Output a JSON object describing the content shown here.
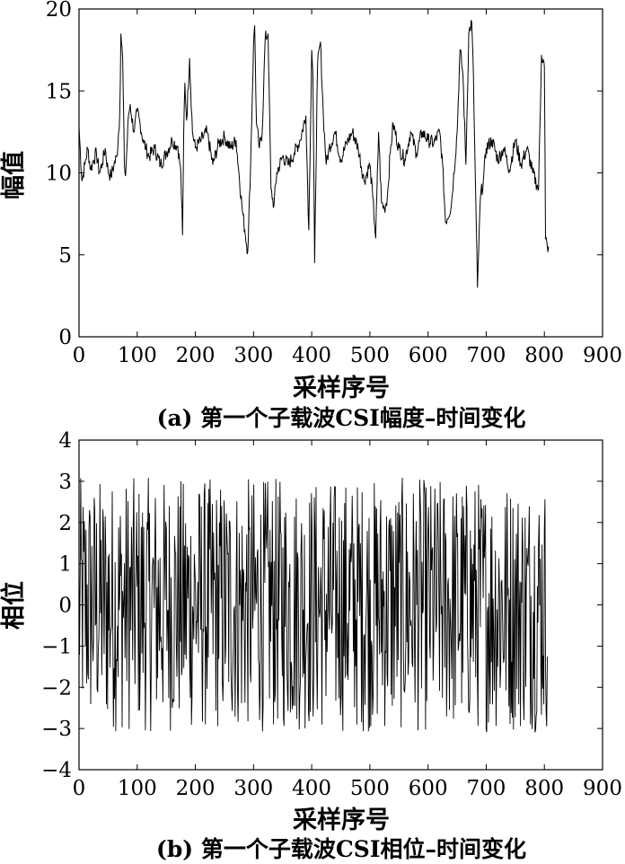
{
  "chart_data": [
    {
      "type": "line",
      "caption": "(a) 第一个子载波CSI幅度–时间变化",
      "xlabel": "采样序号",
      "ylabel": "幅值",
      "xlim": [
        0,
        900
      ],
      "ylim": [
        0,
        20
      ],
      "xticks": [
        "0",
        "100",
        "200",
        "300",
        "400",
        "500",
        "600",
        "700",
        "800",
        "900"
      ],
      "yticks": [
        "0",
        "5",
        "10",
        "15",
        "20"
      ],
      "grid": false,
      "series": [
        {
          "x": [
            0,
            5,
            10,
            15,
            20,
            25,
            30,
            35,
            40,
            45,
            50,
            55,
            60,
            65,
            70,
            72,
            75,
            78,
            80,
            85,
            88,
            90,
            95,
            100,
            105,
            110,
            115,
            120,
            130,
            140,
            150,
            160,
            170,
            175,
            178,
            180,
            182,
            185,
            190,
            195,
            200,
            210,
            220,
            230,
            240,
            250,
            260,
            270,
            280,
            285,
            290,
            295,
            300,
            302,
            305,
            310,
            315,
            320,
            325,
            330,
            335,
            340,
            350,
            360,
            370,
            380,
            390,
            395,
            400,
            402,
            405,
            410,
            415,
            420,
            425,
            430,
            440,
            450,
            460,
            470,
            480,
            490,
            500,
            505,
            510,
            515,
            520,
            525,
            530,
            535,
            540,
            550,
            560,
            570,
            580,
            590,
            600,
            610,
            620,
            625,
            630,
            640,
            650,
            655,
            660,
            665,
            670,
            675,
            678,
            680,
            685,
            690,
            695,
            700,
            710,
            720,
            730,
            740,
            750,
            760,
            770,
            780,
            790,
            795,
            800,
            802,
            805,
            807
          ],
          "values": [
            12.8,
            9.5,
            10.5,
            11.5,
            10.2,
            10.8,
            11.2,
            10.0,
            10.6,
            11.5,
            10.1,
            9.8,
            10.5,
            11.0,
            13.5,
            18.5,
            17.0,
            10.5,
            9.8,
            13.5,
            14.2,
            13.5,
            12.5,
            13.8,
            13.0,
            12.0,
            11.5,
            11.0,
            11.5,
            10.5,
            11.2,
            12.0,
            11.6,
            10.0,
            6.2,
            12.5,
            15.5,
            13.2,
            17.0,
            12.5,
            11.5,
            12.0,
            12.5,
            10.5,
            11.8,
            12.2,
            11.5,
            12.0,
            8.0,
            6.5,
            5.2,
            10.5,
            17.8,
            19.0,
            13.0,
            11.5,
            12.5,
            18.2,
            18.5,
            9.0,
            8.0,
            10.0,
            11.0,
            10.5,
            11.2,
            12.0,
            13.5,
            6.5,
            17.5,
            16.0,
            4.5,
            16.5,
            18.0,
            13.5,
            10.5,
            11.5,
            12.5,
            10.8,
            11.8,
            12.5,
            11.5,
            9.5,
            10.5,
            8.5,
            6.0,
            12.5,
            8.2,
            7.8,
            8.5,
            11.2,
            13.0,
            11.5,
            10.8,
            12.5,
            11.2,
            12.5,
            12.0,
            11.8,
            12.5,
            10.5,
            7.0,
            8.0,
            12.5,
            17.5,
            16.0,
            10.5,
            18.5,
            19.2,
            16.0,
            12.0,
            3.0,
            8.5,
            9.5,
            11.5,
            12.0,
            10.8,
            11.5,
            10.2,
            12.0,
            10.5,
            11.5,
            10.0,
            9.0,
            17.2,
            16.5,
            6.0,
            5.5,
            5.5
          ]
        }
      ]
    },
    {
      "type": "line",
      "caption": "(b) 第一个子载波CSI相位–时间变化",
      "xlabel": "采样序号",
      "ylabel": "相位",
      "xlim": [
        0,
        900
      ],
      "ylim": [
        -4,
        4
      ],
      "xticks": [
        "0",
        "100",
        "200",
        "300",
        "400",
        "500",
        "600",
        "700",
        "800",
        "900"
      ],
      "yticks": [
        "4",
        "3",
        "2",
        "1",
        "0",
        "−1",
        "−2",
        "−3",
        "−4"
      ],
      "grid": false,
      "series": [
        {
          "x_range": [
            0,
            805
          ],
          "description_amplitude": [
            -3.1,
            3.1
          ],
          "points": 805
        }
      ]
    }
  ]
}
